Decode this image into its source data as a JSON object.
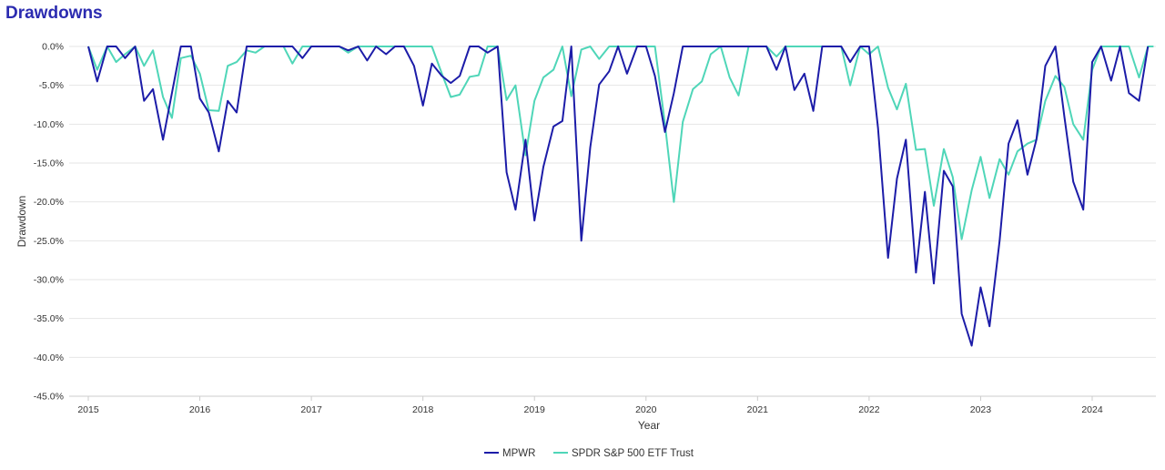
{
  "header": {
    "title": "Drawdowns"
  },
  "colors": {
    "title": "#2b2bb0",
    "grid": "#e6e6e6",
    "axis": "#cccccc"
  },
  "chart_data": {
    "type": "line",
    "title": "Drawdowns",
    "xlabel": "Year",
    "ylabel": "Drawdown",
    "xlim": [
      2015.0,
      2024.6
    ],
    "ylim": [
      -45,
      0
    ],
    "grid": true,
    "legend_position": "bottom",
    "x_ticks": [
      "2015",
      "2016",
      "2017",
      "2018",
      "2019",
      "2020",
      "2021",
      "2022",
      "2023",
      "2024"
    ],
    "y_ticks": [
      "0.0%",
      "-5.0%",
      "-10.0%",
      "-15.0%",
      "-20.0%",
      "-25.0%",
      "-30.0%",
      "-35.0%",
      "-40.0%",
      "-45.0%"
    ],
    "series": [
      {
        "name": "MPWR",
        "color": "#1c1ca8",
        "x": [
          2015.0,
          2015.08,
          2015.17,
          2015.25,
          2015.33,
          2015.42,
          2015.5,
          2015.58,
          2015.67,
          2015.75,
          2015.83,
          2015.92,
          2016.0,
          2016.08,
          2016.17,
          2016.25,
          2016.33,
          2016.42,
          2016.5,
          2016.58,
          2016.67,
          2016.75,
          2016.83,
          2016.92,
          2017.0,
          2017.08,
          2017.17,
          2017.25,
          2017.33,
          2017.42,
          2017.5,
          2017.58,
          2017.67,
          2017.75,
          2017.83,
          2017.92,
          2018.0,
          2018.08,
          2018.17,
          2018.25,
          2018.33,
          2018.42,
          2018.5,
          2018.58,
          2018.67,
          2018.75,
          2018.83,
          2018.92,
          2019.0,
          2019.08,
          2019.17,
          2019.25,
          2019.33,
          2019.42,
          2019.5,
          2019.58,
          2019.67,
          2019.75,
          2019.83,
          2019.92,
          2020.0,
          2020.08,
          2020.17,
          2020.25,
          2020.33,
          2020.42,
          2020.5,
          2020.58,
          2020.67,
          2020.75,
          2020.83,
          2020.92,
          2021.0,
          2021.08,
          2021.17,
          2021.25,
          2021.33,
          2021.42,
          2021.5,
          2021.58,
          2021.67,
          2021.75,
          2021.83,
          2021.92,
          2022.0,
          2022.08,
          2022.17,
          2022.25,
          2022.33,
          2022.42,
          2022.5,
          2022.58,
          2022.67,
          2022.75,
          2022.83,
          2022.92,
          2023.0,
          2023.08,
          2023.17,
          2023.25,
          2023.33,
          2023.42,
          2023.5,
          2023.58,
          2023.67,
          2023.75,
          2023.83,
          2023.92,
          2024.0,
          2024.08,
          2024.17,
          2024.25,
          2024.33,
          2024.42,
          2024.5
        ],
        "y": [
          0,
          -4.5,
          0,
          0,
          -1.5,
          0,
          -7,
          -5.5,
          -12,
          -6,
          0,
          0,
          -6.7,
          -8.5,
          -13.5,
          -7,
          -8.5,
          0,
          0,
          0,
          0,
          0,
          0,
          -1.5,
          0,
          0,
          0,
          0,
          -0.5,
          0,
          -1.8,
          0,
          -1,
          0,
          0,
          -2.5,
          -7.6,
          -2.2,
          -3.8,
          -4.7,
          -3.8,
          0,
          0,
          -0.8,
          0,
          -16.2,
          -21,
          -12,
          -22.4,
          -15.5,
          -10.3,
          -9.6,
          0,
          -25,
          -13,
          -4.9,
          -3.2,
          0,
          -3.5,
          0,
          0,
          -3.8,
          -11,
          -6,
          0,
          0,
          0,
          0,
          0,
          0,
          0,
          0,
          0,
          0,
          -3,
          0,
          -5.6,
          -3.5,
          -8.3,
          0,
          0,
          0,
          -2,
          0,
          0,
          -10.5,
          -27.2,
          -17,
          -12,
          -29.1,
          -18.7,
          -30.5,
          -16,
          -18,
          -34.4,
          -38.5,
          -31,
          -36,
          -25,
          -12.5,
          -9.5,
          -16.5,
          -12,
          -2.5,
          0,
          -9,
          -17.4,
          -21,
          -2,
          0,
          -4.4,
          0,
          -6,
          -7,
          0
        ]
      },
      {
        "name": "SPDR S&P 500 ETF Trust",
        "color": "#4fd6b8",
        "x": [
          2015.0,
          2015.08,
          2015.17,
          2015.25,
          2015.33,
          2015.42,
          2015.5,
          2015.58,
          2015.67,
          2015.75,
          2015.83,
          2015.92,
          2016.0,
          2016.08,
          2016.17,
          2016.25,
          2016.33,
          2016.42,
          2016.5,
          2016.58,
          2016.67,
          2016.75,
          2016.83,
          2016.92,
          2017.0,
          2017.08,
          2017.17,
          2017.25,
          2017.33,
          2017.42,
          2017.5,
          2017.58,
          2017.67,
          2017.75,
          2017.83,
          2017.92,
          2018.0,
          2018.08,
          2018.17,
          2018.25,
          2018.33,
          2018.42,
          2018.5,
          2018.58,
          2018.67,
          2018.75,
          2018.83,
          2018.92,
          2019.0,
          2019.08,
          2019.17,
          2019.25,
          2019.33,
          2019.42,
          2019.5,
          2019.58,
          2019.67,
          2019.75,
          2019.83,
          2019.92,
          2020.0,
          2020.08,
          2020.17,
          2020.25,
          2020.33,
          2020.42,
          2020.5,
          2020.58,
          2020.67,
          2020.75,
          2020.83,
          2020.92,
          2021.0,
          2021.08,
          2021.17,
          2021.25,
          2021.33,
          2021.42,
          2021.5,
          2021.58,
          2021.67,
          2021.75,
          2021.83,
          2021.92,
          2022.0,
          2022.08,
          2022.17,
          2022.25,
          2022.33,
          2022.42,
          2022.5,
          2022.58,
          2022.67,
          2022.75,
          2022.83,
          2022.92,
          2023.0,
          2023.08,
          2023.17,
          2023.25,
          2023.33,
          2023.42,
          2023.5,
          2023.58,
          2023.67,
          2023.75,
          2023.83,
          2023.92,
          2024.0,
          2024.08,
          2024.17,
          2024.25,
          2024.33,
          2024.42,
          2024.5,
          2024.55
        ],
        "y": [
          0,
          -3,
          0,
          -2,
          -1,
          0,
          -2.5,
          -0.5,
          -6.5,
          -9.2,
          -1.5,
          -1.2,
          -3.5,
          -8.2,
          -8.3,
          -2.5,
          -2,
          -0.5,
          -0.8,
          0,
          0,
          0,
          -2.2,
          0,
          0,
          0,
          0,
          0,
          -0.8,
          0,
          0,
          0,
          0,
          0,
          0,
          0,
          0,
          0,
          -3.5,
          -6.5,
          -6.2,
          -3.9,
          -3.7,
          0,
          0,
          -6.9,
          -5,
          -14,
          -7,
          -4,
          -3,
          0,
          -6.4,
          -0.4,
          0,
          -1.6,
          0,
          0,
          0,
          0,
          0,
          0,
          -10,
          -20,
          -9.7,
          -5.5,
          -4.5,
          -1,
          0,
          -4,
          -6.3,
          0,
          0,
          0,
          -1.3,
          0,
          0,
          0,
          0,
          0,
          0,
          0,
          -5,
          0,
          -1,
          0,
          -5.3,
          -8.1,
          -4.8,
          -13.3,
          -13.2,
          -20.5,
          -13.2,
          -16.8,
          -24.8,
          -18.5,
          -14.2,
          -19.5,
          -14.5,
          -16.5,
          -13.5,
          -12.5,
          -12,
          -7,
          -3.8,
          -5.2,
          -10,
          -12,
          -3,
          0,
          0,
          0,
          0,
          -4,
          0,
          0
        ]
      }
    ]
  }
}
